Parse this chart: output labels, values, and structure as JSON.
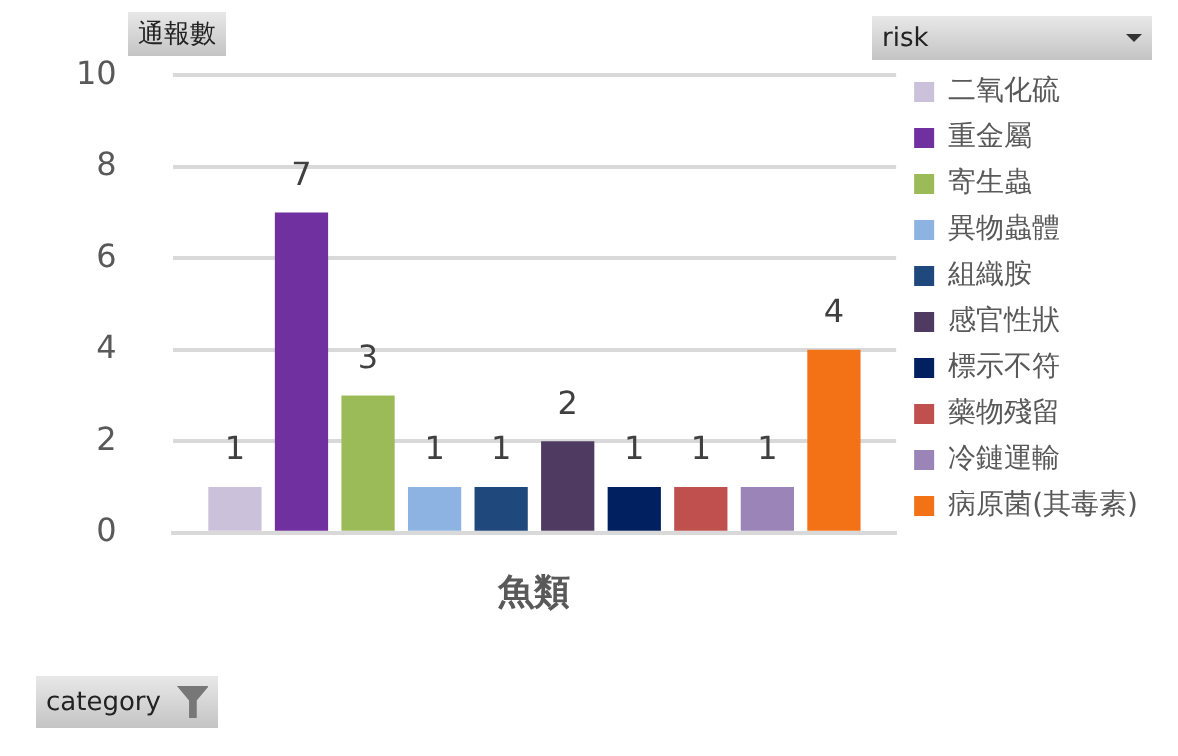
{
  "chart_data": {
    "type": "bar",
    "ylabel": "通報數",
    "annotations": [
      "category"
    ],
    "legend_title": "risk",
    "categories": [
      "魚類"
    ],
    "series": [
      {
        "name": "二氧化硫",
        "color": "#ccc1da",
        "values": [
          1
        ]
      },
      {
        "name": "重金屬",
        "color": "#7030a0",
        "values": [
          7
        ]
      },
      {
        "name": "寄生蟲",
        "color": "#9bbb59",
        "values": [
          3
        ]
      },
      {
        "name": "異物蟲體",
        "color": "#8db3e2",
        "values": [
          1
        ]
      },
      {
        "name": "組織胺",
        "color": "#1f497d",
        "values": [
          1
        ]
      },
      {
        "name": "感官性狀",
        "color": "#4f3b62",
        "values": [
          2
        ]
      },
      {
        "name": "標示不符",
        "color": "#002060",
        "values": [
          1
        ]
      },
      {
        "name": "藥物殘留",
        "color": "#c0504d",
        "values": [
          1
        ]
      },
      {
        "name": "冷鏈運輸",
        "color": "#9a84b8",
        "values": [
          1
        ]
      },
      {
        "name": "病原菌(其毒素)",
        "color": "#f47216",
        "values": [
          4
        ]
      }
    ],
    "ylim": [
      0,
      10
    ],
    "yticks": [
      0,
      2,
      4,
      6,
      8,
      10
    ],
    "grid": "y",
    "legend": "right",
    "data_labels": true
  }
}
